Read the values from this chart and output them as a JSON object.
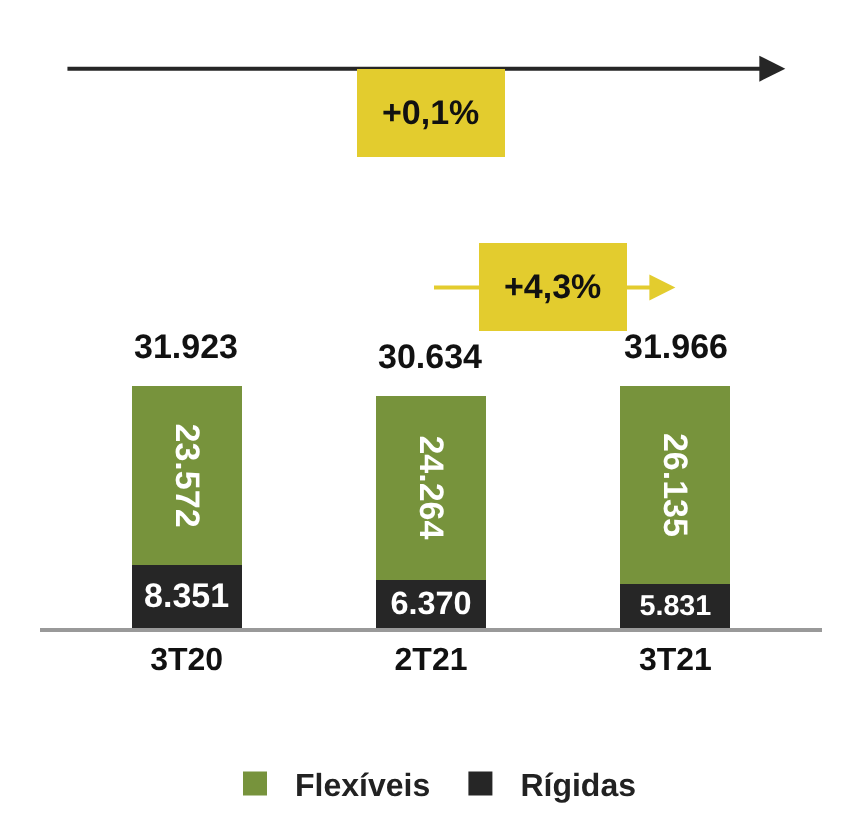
{
  "chart_data": {
    "type": "bar",
    "stacked": true,
    "categories": [
      "3T20",
      "2T21",
      "3T21"
    ],
    "series": [
      {
        "name": "Rígidas",
        "color": "#262626",
        "values": [
          8351,
          6370,
          5831
        ],
        "value_labels": [
          "8.351",
          "6.370",
          "5.831"
        ]
      },
      {
        "name": "Flexíveis",
        "color": "#77933c",
        "values": [
          23572,
          24264,
          26135
        ],
        "value_labels": [
          "23.572",
          "24.264",
          "26.135"
        ]
      }
    ],
    "totals": [
      "31.923",
      "30.634",
      "31.966"
    ],
    "annotations": [
      "+0,1%",
      "+4,3%"
    ],
    "legend": "bottom",
    "grid": false
  }
}
